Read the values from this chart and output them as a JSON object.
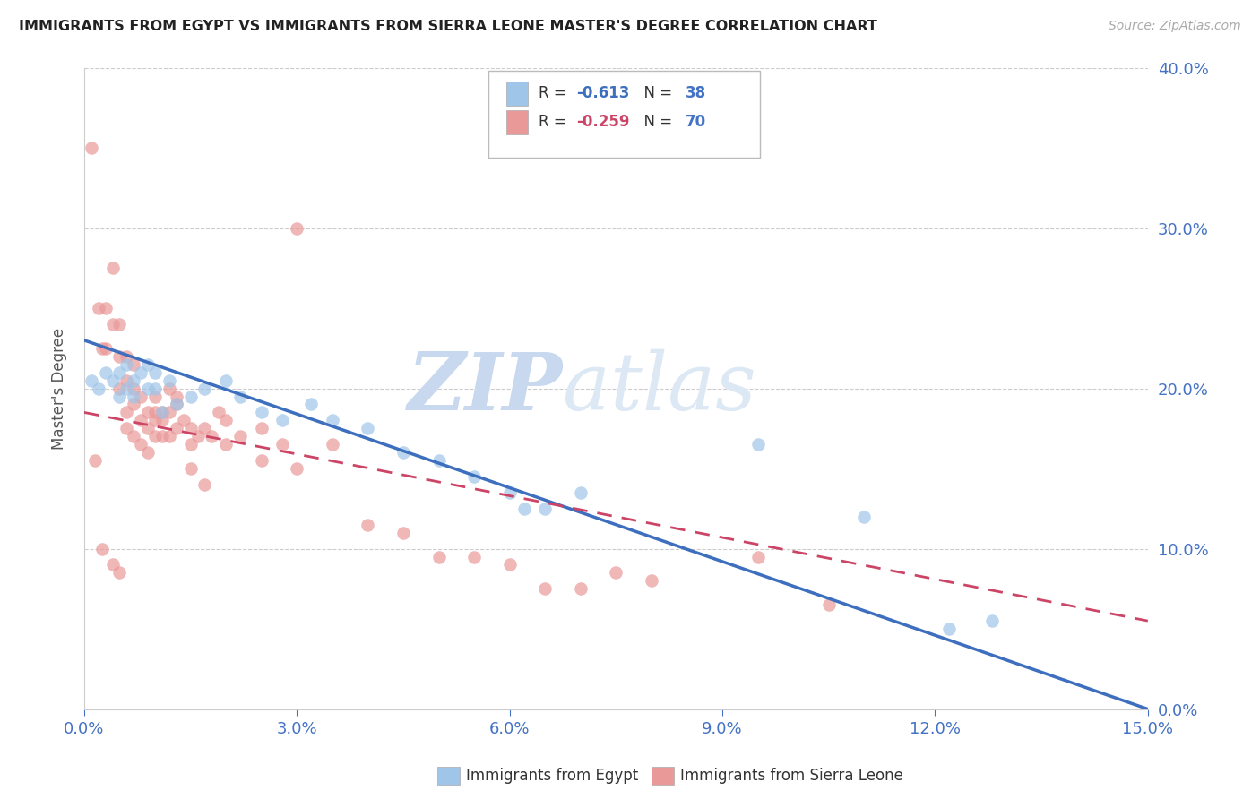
{
  "title": "IMMIGRANTS FROM EGYPT VS IMMIGRANTS FROM SIERRA LEONE MASTER'S DEGREE CORRELATION CHART",
  "source": "Source: ZipAtlas.com",
  "ylabel": "Master's Degree",
  "xlim": [
    0.0,
    15.0
  ],
  "ylim": [
    0.0,
    40.0
  ],
  "yticks": [
    0.0,
    10.0,
    20.0,
    30.0,
    40.0
  ],
  "xticks": [
    0.0,
    3.0,
    6.0,
    9.0,
    12.0,
    15.0
  ],
  "egypt_color": "#9fc5e8",
  "sierra_color": "#ea9999",
  "egypt_line_color": "#3d6fbe",
  "sierra_line_color": "#cc4466",
  "egypt_R": "-0.613",
  "egypt_N": "38",
  "sierra_R": "-0.259",
  "sierra_N": "70",
  "egypt_x": [
    0.1,
    0.2,
    0.3,
    0.4,
    0.5,
    0.5,
    0.6,
    0.6,
    0.7,
    0.7,
    0.8,
    0.9,
    0.9,
    1.0,
    1.0,
    1.1,
    1.2,
    1.3,
    1.5,
    1.7,
    2.0,
    2.2,
    2.5,
    2.8,
    3.2,
    3.5,
    4.0,
    4.5,
    5.0,
    5.5,
    6.0,
    6.2,
    6.5,
    7.0,
    9.5,
    11.0,
    12.2,
    12.8
  ],
  "egypt_y": [
    20.5,
    20.0,
    21.0,
    20.5,
    19.5,
    21.0,
    20.0,
    21.5,
    19.5,
    20.5,
    21.0,
    20.0,
    21.5,
    20.0,
    21.0,
    18.5,
    20.5,
    19.0,
    19.5,
    20.0,
    20.5,
    19.5,
    18.5,
    18.0,
    19.0,
    18.0,
    17.5,
    16.0,
    15.5,
    14.5,
    13.5,
    12.5,
    12.5,
    13.5,
    16.5,
    12.0,
    5.0,
    5.5
  ],
  "sierra_x": [
    0.1,
    0.2,
    0.25,
    0.3,
    0.3,
    0.4,
    0.4,
    0.5,
    0.5,
    0.5,
    0.6,
    0.6,
    0.6,
    0.7,
    0.7,
    0.7,
    0.8,
    0.8,
    0.9,
    0.9,
    1.0,
    1.0,
    1.0,
    1.1,
    1.1,
    1.2,
    1.2,
    1.3,
    1.3,
    1.4,
    1.5,
    1.5,
    1.6,
    1.7,
    1.8,
    1.9,
    2.0,
    2.0,
    2.2,
    2.5,
    2.5,
    2.8,
    3.0,
    3.0,
    3.5,
    4.0,
    4.5,
    5.0,
    5.5,
    6.0,
    6.5,
    7.0,
    7.5,
    8.0,
    9.5,
    10.5,
    0.15,
    0.25,
    0.4,
    0.5,
    0.6,
    0.7,
    0.8,
    0.9,
    1.0,
    1.1,
    1.2,
    1.3,
    1.5,
    1.7
  ],
  "sierra_y": [
    35.0,
    25.0,
    22.5,
    25.0,
    22.5,
    24.0,
    27.5,
    20.0,
    22.0,
    24.0,
    18.5,
    20.5,
    22.0,
    19.0,
    20.0,
    21.5,
    18.0,
    19.5,
    17.5,
    18.5,
    17.0,
    18.5,
    19.5,
    17.0,
    18.0,
    17.0,
    18.5,
    17.5,
    19.0,
    18.0,
    16.5,
    17.5,
    17.0,
    17.5,
    17.0,
    18.5,
    16.5,
    18.0,
    17.0,
    15.5,
    17.5,
    16.5,
    15.0,
    30.0,
    16.5,
    11.5,
    11.0,
    9.5,
    9.5,
    9.0,
    7.5,
    7.5,
    8.5,
    8.0,
    9.5,
    6.5,
    15.5,
    10.0,
    9.0,
    8.5,
    17.5,
    17.0,
    16.5,
    16.0,
    18.0,
    18.5,
    20.0,
    19.5,
    15.0,
    14.0
  ],
  "egypt_line_x": [
    0.0,
    15.0
  ],
  "egypt_line_y": [
    23.0,
    0.0
  ],
  "sierra_line_x": [
    0.0,
    15.0
  ],
  "sierra_line_y": [
    18.5,
    5.5
  ],
  "watermark_zip": "ZIP",
  "watermark_atlas": "atlas",
  "background_color": "#ffffff",
  "grid_color": "#cccccc",
  "title_color": "#222222",
  "axis_label_color": "#4472c4",
  "r_value_color_egypt": "#3d6fbe",
  "r_value_color_sierra": "#cc4466",
  "n_value_color": "#4472c4",
  "legend_border_color": "#cccccc"
}
